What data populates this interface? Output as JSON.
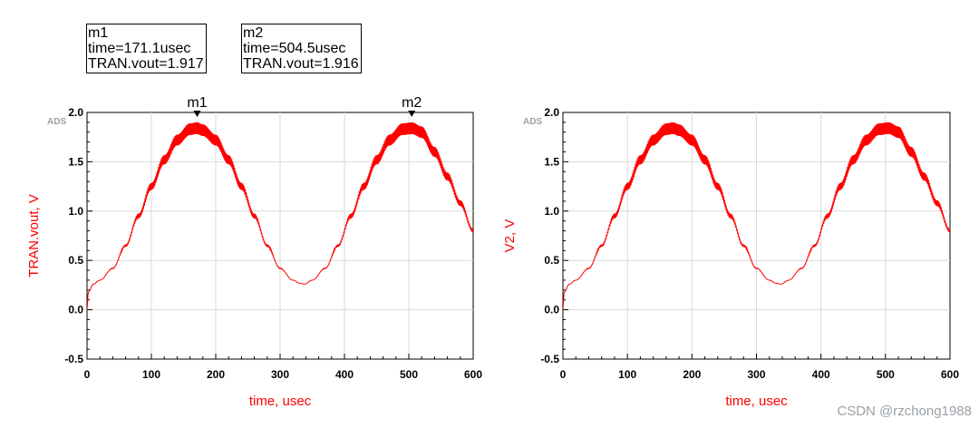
{
  "markers": [
    {
      "name": "m1",
      "time_label": "time=171.1usec",
      "value_label": "TRAN.vout=1.917",
      "x": 171.1,
      "y": 1.917
    },
    {
      "name": "m2",
      "time_label": "time=504.5usec",
      "value_label": "TRAN.vout=1.916",
      "x": 504.5,
      "y": 1.916
    }
  ],
  "chart_data": [
    {
      "type": "line",
      "logo": "ADS",
      "xlabel": "time, usec",
      "ylabel": "TRAN.vout, V",
      "xlim": [
        0,
        600
      ],
      "ylim": [
        -0.5,
        2.0
      ],
      "xticks": [
        "0",
        "100",
        "200",
        "300",
        "400",
        "500",
        "600"
      ],
      "yticks": [
        "2.0",
        "1.5",
        "1.0",
        "0.5",
        "0.0",
        "-0.5"
      ],
      "grid": true,
      "line_color": "#ff0000",
      "series": [
        {
          "x": [
            0,
            2,
            10,
            20,
            40,
            60,
            80,
            100,
            120,
            140,
            160,
            171,
            180,
            200,
            220,
            240,
            260,
            280,
            300,
            320,
            330,
            338,
            350,
            370,
            390,
            410,
            430,
            450,
            470,
            490,
            505,
            520,
            540,
            560,
            580,
            600
          ],
          "y": [
            0.0,
            0.18,
            0.26,
            0.3,
            0.42,
            0.65,
            0.95,
            1.25,
            1.52,
            1.72,
            1.83,
            1.84,
            1.82,
            1.72,
            1.52,
            1.25,
            0.95,
            0.65,
            0.42,
            0.3,
            0.27,
            0.26,
            0.3,
            0.42,
            0.65,
            0.95,
            1.25,
            1.52,
            1.72,
            1.83,
            1.84,
            1.8,
            1.6,
            1.35,
            1.08,
            0.8
          ],
          "ripple": 0.06
        }
      ],
      "markers": [
        "m1",
        "m2"
      ]
    },
    {
      "type": "line",
      "logo": "ADS",
      "xlabel": "time, usec",
      "ylabel": "V2, V",
      "xlim": [
        0,
        600
      ],
      "ylim": [
        -0.5,
        2.0
      ],
      "xticks": [
        "0",
        "100",
        "200",
        "300",
        "400",
        "500",
        "600"
      ],
      "yticks": [
        "2.0",
        "1.5",
        "1.0",
        "0.5",
        "0.0",
        "-0.5"
      ],
      "grid": true,
      "line_color": "#ff0000",
      "series": [
        {
          "x": [
            0,
            2,
            10,
            20,
            40,
            60,
            80,
            100,
            120,
            140,
            160,
            171,
            180,
            200,
            220,
            240,
            260,
            280,
            300,
            320,
            330,
            338,
            350,
            370,
            390,
            410,
            430,
            450,
            470,
            490,
            505,
            520,
            540,
            560,
            580,
            600
          ],
          "y": [
            0.0,
            0.18,
            0.26,
            0.3,
            0.42,
            0.65,
            0.95,
            1.25,
            1.52,
            1.72,
            1.83,
            1.84,
            1.82,
            1.72,
            1.52,
            1.25,
            0.95,
            0.65,
            0.42,
            0.3,
            0.27,
            0.26,
            0.3,
            0.42,
            0.65,
            0.95,
            1.25,
            1.52,
            1.72,
            1.83,
            1.84,
            1.8,
            1.6,
            1.35,
            1.08,
            0.8
          ],
          "ripple": 0.06
        }
      ],
      "markers": []
    }
  ],
  "watermark": "CSDN @rzchong1988"
}
